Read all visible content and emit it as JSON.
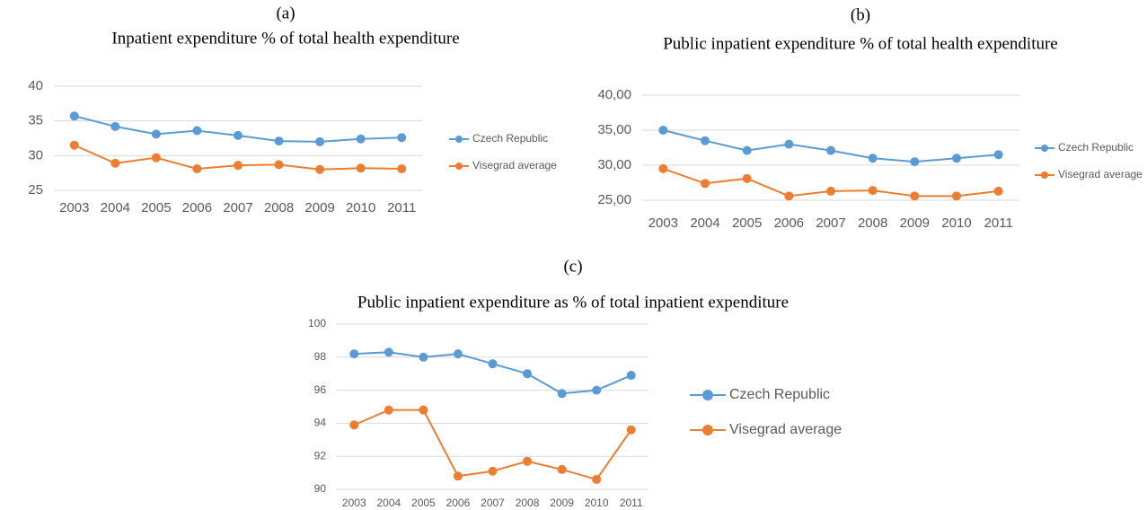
{
  "chart_data": [
    {
      "type": "line",
      "label": "(a)",
      "title": "Inpatient expenditure % of total health expenditure",
      "categories": [
        "2003",
        "2004",
        "2005",
        "2006",
        "2007",
        "2008",
        "2009",
        "2010",
        "2011"
      ],
      "series": [
        {
          "name": "Czech Republic",
          "color": "#5b9bd5",
          "values": [
            35.7,
            34.2,
            33.1,
            33.6,
            32.9,
            32.1,
            32.0,
            32.4,
            32.6
          ]
        },
        {
          "name": "Visegrad average",
          "color": "#ed7d31",
          "values": [
            31.5,
            28.9,
            29.7,
            28.1,
            28.6,
            28.7,
            28.0,
            28.2,
            28.1
          ]
        }
      ],
      "ylim": [
        25,
        40
      ],
      "yticks": [
        25,
        30,
        35,
        40
      ],
      "grid": true,
      "legend": "right"
    },
    {
      "type": "line",
      "label": "(b)",
      "title": "Public inpatient expenditure % of total health expenditure",
      "categories": [
        "2003",
        "2004",
        "2005",
        "2006",
        "2007",
        "2008",
        "2009",
        "2010",
        "2011"
      ],
      "series": [
        {
          "name": "Czech Republic",
          "color": "#5b9bd5",
          "values": [
            35.0,
            33.5,
            32.1,
            33.0,
            32.1,
            31.0,
            30.5,
            31.0,
            31.5
          ]
        },
        {
          "name": "Visegrad average",
          "color": "#ed7d31",
          "values": [
            29.5,
            27.4,
            28.1,
            25.6,
            26.3,
            26.4,
            25.6,
            25.6,
            26.3
          ]
        }
      ],
      "ylim": [
        25,
        40
      ],
      "yticks": [
        {
          "value": 25,
          "label": "25,00"
        },
        {
          "value": 30,
          "label": "30,00"
        },
        {
          "value": 35,
          "label": "35,00"
        },
        {
          "value": 40,
          "label": "40,00"
        }
      ],
      "grid": true,
      "legend": "right"
    },
    {
      "type": "line",
      "label": "(c)",
      "title": "Public inpatient expenditure as % of total inpatient expenditure",
      "categories": [
        "2003",
        "2004",
        "2005",
        "2006",
        "2007",
        "2008",
        "2009",
        "2010",
        "2011"
      ],
      "series": [
        {
          "name": "Czech Republic",
          "color": "#5b9bd5",
          "values": [
            98.2,
            98.3,
            98.0,
            98.2,
            97.6,
            97.0,
            95.8,
            96.0,
            96.9
          ]
        },
        {
          "name": "Visegrad average",
          "color": "#ed7d31",
          "values": [
            93.9,
            94.8,
            94.8,
            90.8,
            91.1,
            91.7,
            91.2,
            90.6,
            93.6
          ]
        }
      ],
      "ylim": [
        90,
        100
      ],
      "yticks": [
        90,
        92,
        94,
        96,
        98,
        100
      ],
      "grid": true,
      "legend": "right"
    }
  ]
}
